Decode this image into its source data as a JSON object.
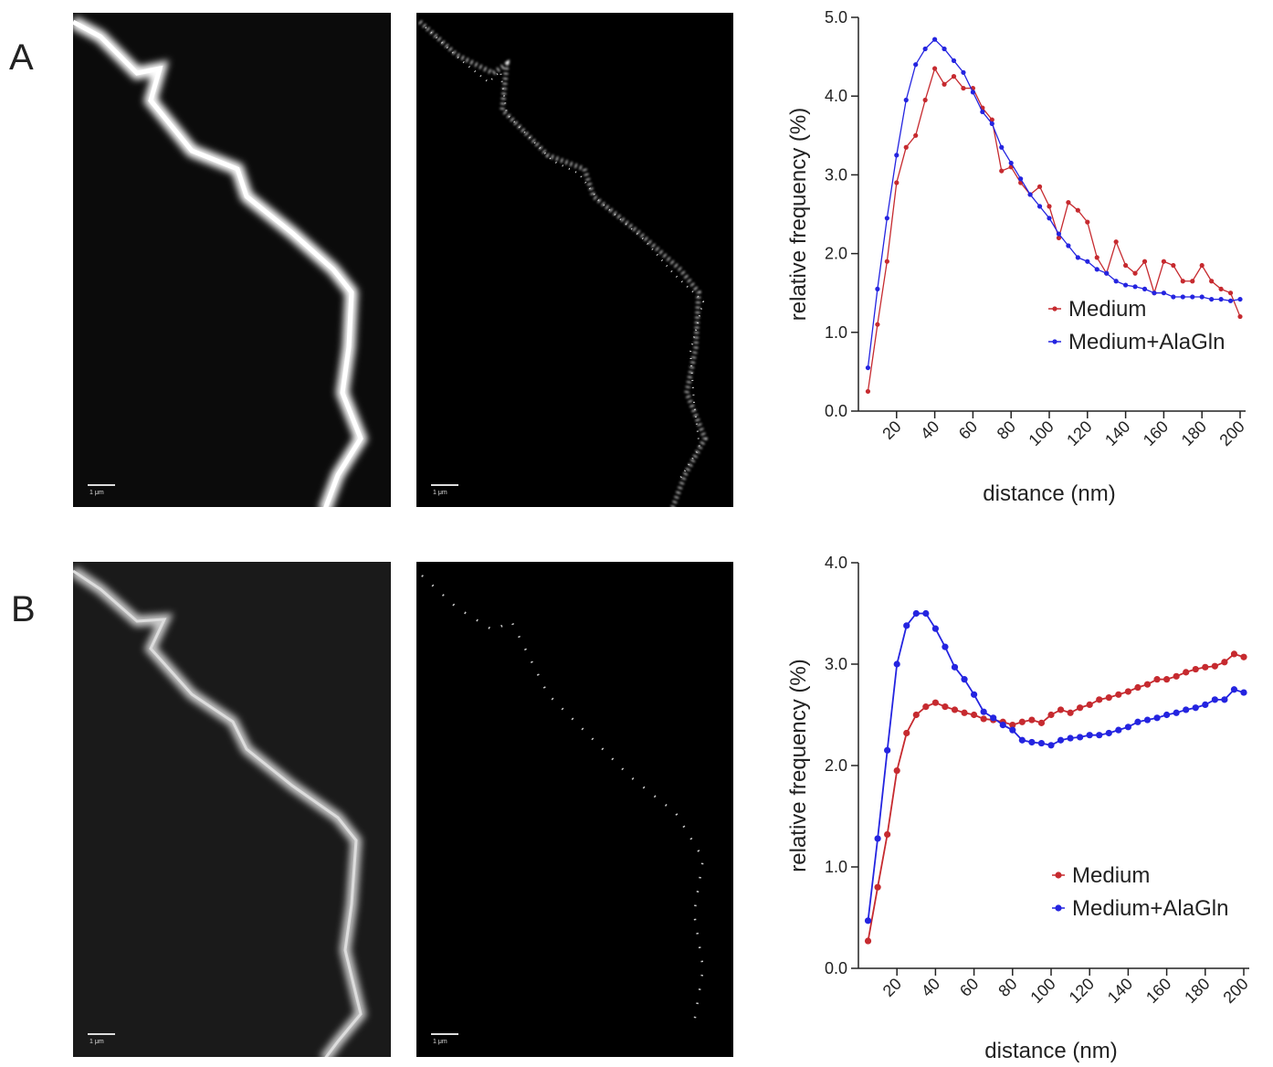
{
  "panels": [
    {
      "label": "A",
      "scale_bars": [
        "1 μm",
        "1 μm"
      ]
    },
    {
      "label": "B",
      "scale_bars": [
        "1 μm",
        "1 μm"
      ]
    }
  ],
  "chart_data": [
    {
      "type": "line",
      "y_label": "relative frequency (%)",
      "x_label": "distance (nm)",
      "xlim": [
        0,
        200
      ],
      "ylim": [
        0,
        5
      ],
      "xticks": [
        20,
        40,
        60,
        80,
        100,
        120,
        140,
        160,
        180,
        200
      ],
      "yticks": [
        {
          "value": 0,
          "label": "0.0"
        },
        {
          "value": 1,
          "label": "1.0"
        },
        {
          "value": 2,
          "label": "2.0"
        },
        {
          "value": 3,
          "label": "3.0"
        },
        {
          "value": 4,
          "label": "4.0"
        },
        {
          "value": 5,
          "label": "5.0"
        }
      ],
      "legend": "lower right",
      "x": [
        5,
        10,
        15,
        20,
        25,
        30,
        35,
        40,
        45,
        50,
        55,
        60,
        65,
        70,
        75,
        80,
        85,
        90,
        95,
        100,
        105,
        110,
        115,
        120,
        125,
        130,
        135,
        140,
        145,
        150,
        155,
        160,
        165,
        170,
        175,
        180,
        185,
        190,
        195,
        200
      ],
      "series": [
        {
          "name": "Medium",
          "color": "#c62a2f",
          "values": [
            0.25,
            1.1,
            1.9,
            2.9,
            3.35,
            3.5,
            3.95,
            4.35,
            4.15,
            4.25,
            4.1,
            4.1,
            3.85,
            3.7,
            3.05,
            3.1,
            2.9,
            2.75,
            2.85,
            2.6,
            2.2,
            2.65,
            2.55,
            2.4,
            1.95,
            1.75,
            2.15,
            1.85,
            1.75,
            1.9,
            1.5,
            1.9,
            1.85,
            1.65,
            1.65,
            1.85,
            1.65,
            1.55,
            1.5,
            1.2
          ]
        },
        {
          "name": "Medium+AlaGln",
          "color": "#2424e0",
          "values": [
            0.55,
            1.55,
            2.45,
            3.25,
            3.95,
            4.4,
            4.6,
            4.72,
            4.6,
            4.45,
            4.3,
            4.05,
            3.8,
            3.65,
            3.35,
            3.15,
            2.95,
            2.75,
            2.6,
            2.45,
            2.25,
            2.1,
            1.95,
            1.9,
            1.8,
            1.75,
            1.65,
            1.6,
            1.58,
            1.55,
            1.5,
            1.5,
            1.45,
            1.45,
            1.45,
            1.45,
            1.42,
            1.42,
            1.4,
            1.42
          ]
        }
      ]
    },
    {
      "type": "line",
      "y_label": "relative frequency (%)",
      "x_label": "distance (nm)",
      "xlim": [
        0,
        200
      ],
      "ylim": [
        0,
        4
      ],
      "xticks": [
        20,
        40,
        60,
        80,
        100,
        120,
        140,
        160,
        180,
        200
      ],
      "yticks": [
        {
          "value": 0,
          "label": "0.0"
        },
        {
          "value": 1,
          "label": "1.0"
        },
        {
          "value": 2,
          "label": "2.0"
        },
        {
          "value": 3,
          "label": "3.0"
        },
        {
          "value": 4,
          "label": "4.0"
        }
      ],
      "legend": "lower right",
      "x": [
        5,
        10,
        15,
        20,
        25,
        30,
        35,
        40,
        45,
        50,
        55,
        60,
        65,
        70,
        75,
        80,
        85,
        90,
        95,
        100,
        105,
        110,
        115,
        120,
        125,
        130,
        135,
        140,
        145,
        150,
        155,
        160,
        165,
        170,
        175,
        180,
        185,
        190,
        195,
        200
      ],
      "series": [
        {
          "name": "Medium",
          "color": "#c62a2f",
          "values": [
            0.27,
            0.8,
            1.32,
            1.95,
            2.32,
            2.5,
            2.58,
            2.62,
            2.58,
            2.55,
            2.52,
            2.5,
            2.46,
            2.45,
            2.43,
            2.4,
            2.43,
            2.45,
            2.42,
            2.5,
            2.55,
            2.52,
            2.57,
            2.6,
            2.65,
            2.67,
            2.7,
            2.73,
            2.77,
            2.8,
            2.85,
            2.85,
            2.88,
            2.92,
            2.95,
            2.97,
            2.98,
            3.02,
            3.1,
            3.07
          ]
        },
        {
          "name": "Medium+AlaGln",
          "color": "#2424e0",
          "values": [
            0.47,
            1.28,
            2.15,
            3.0,
            3.38,
            3.5,
            3.5,
            3.35,
            3.17,
            2.97,
            2.85,
            2.7,
            2.53,
            2.47,
            2.4,
            2.35,
            2.25,
            2.23,
            2.22,
            2.2,
            2.25,
            2.27,
            2.28,
            2.3,
            2.3,
            2.32,
            2.35,
            2.38,
            2.43,
            2.45,
            2.47,
            2.5,
            2.52,
            2.55,
            2.57,
            2.6,
            2.65,
            2.65,
            2.75,
            2.72
          ]
        }
      ]
    }
  ]
}
